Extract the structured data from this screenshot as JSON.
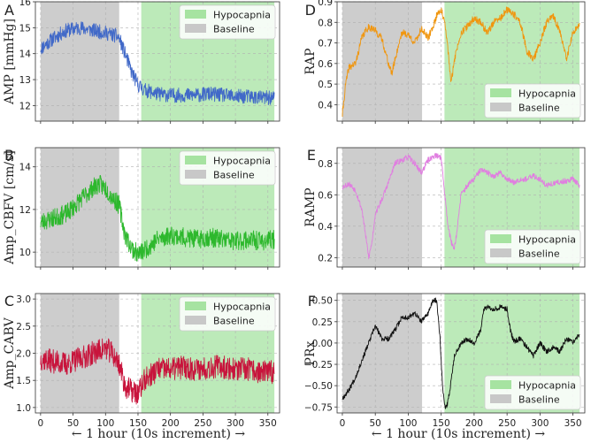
{
  "figure": {
    "bottom_xlabels": [
      "← 1 hour (10s increment) →",
      "← 1 hour (10s increment) →"
    ]
  },
  "colors": {
    "hypocapnia": "#a6e3a1",
    "baseline": "#c8c8c8"
  },
  "chart_data": [
    {
      "type": "line",
      "letter": "A",
      "ylabel": "AMP [mmHg]",
      "xlim": [
        -8,
        368
      ],
      "ylim": [
        11.4,
        16.0
      ],
      "xticks": [
        0,
        50,
        100,
        150,
        200,
        250,
        300,
        350
      ],
      "show_xticklabels": false,
      "yticks": [
        12,
        13,
        14,
        15,
        16
      ],
      "ytick_labels": [
        "12",
        "13",
        "14",
        "15",
        "16"
      ],
      "color": "#4169c8",
      "baseline_x": [
        0,
        121
      ],
      "hypocapnia_x": [
        155,
        360
      ],
      "legend": [
        "Hypocapnia",
        "Baseline"
      ],
      "legend_loc": "upper right",
      "noise": 0.28,
      "seed": 11,
      "x": [
        0,
        20,
        40,
        60,
        80,
        100,
        115,
        121,
        130,
        140,
        150,
        160,
        180,
        200,
        220,
        240,
        260,
        280,
        300,
        320,
        340,
        360
      ],
      "y": [
        14.2,
        14.6,
        14.9,
        15.0,
        14.9,
        14.8,
        14.7,
        14.6,
        14.0,
        13.3,
        12.8,
        12.6,
        12.45,
        12.4,
        12.4,
        12.4,
        12.45,
        12.4,
        12.35,
        12.35,
        12.3,
        12.3
      ]
    },
    {
      "type": "line",
      "letter": "B",
      "ylabel": "Amp_CBFV [cm/s]",
      "xlim": [
        -8,
        368
      ],
      "ylim": [
        9.3,
        14.9
      ],
      "xticks": [
        0,
        50,
        100,
        150,
        200,
        250,
        300,
        350
      ],
      "show_xticklabels": false,
      "yticks": [
        10,
        12,
        14
      ],
      "ytick_labels": [
        "10",
        "12",
        "14"
      ],
      "color": "#2db82d",
      "baseline_x": [
        0,
        121
      ],
      "hypocapnia_x": [
        155,
        360
      ],
      "legend": [
        "Hypocapnia",
        "Baseline"
      ],
      "legend_loc": "upper right",
      "noise": 0.45,
      "seed": 23,
      "x": [
        0,
        20,
        40,
        60,
        80,
        90,
        100,
        110,
        121,
        130,
        140,
        150,
        160,
        180,
        200,
        220,
        240,
        260,
        280,
        300,
        320,
        340,
        360
      ],
      "y": [
        11.4,
        11.6,
        11.8,
        12.4,
        13.0,
        13.2,
        13.0,
        12.6,
        12.2,
        10.8,
        10.2,
        9.9,
        10.1,
        10.6,
        10.8,
        10.7,
        10.6,
        10.7,
        10.6,
        10.5,
        10.6,
        10.5,
        10.6
      ]
    },
    {
      "type": "line",
      "letter": "C",
      "ylabel": "Amp_CABV",
      "xlim": [
        -8,
        368
      ],
      "ylim": [
        0.9,
        3.1
      ],
      "xticks": [
        0,
        50,
        100,
        150,
        200,
        250,
        300,
        350
      ],
      "show_xticklabels": true,
      "xtick_labels": [
        "0",
        "50",
        "100",
        "150",
        "200",
        "250",
        "300",
        "350"
      ],
      "yticks": [
        1.0,
        1.5,
        2.0,
        2.5,
        3.0
      ],
      "ytick_labels": [
        "1.0",
        "1.5",
        "2.0",
        "2.5",
        "3.0"
      ],
      "color": "#c8143c",
      "baseline_x": [
        0,
        121
      ],
      "hypocapnia_x": [
        155,
        360
      ],
      "legend": [
        "Hypocapnia",
        "Baseline"
      ],
      "legend_loc": "upper right",
      "noise": 0.22,
      "seed": 37,
      "x": [
        0,
        20,
        40,
        60,
        80,
        100,
        110,
        121,
        130,
        140,
        150,
        160,
        180,
        200,
        220,
        240,
        260,
        280,
        300,
        320,
        340,
        360
      ],
      "y": [
        1.9,
        1.85,
        1.8,
        1.9,
        2.0,
        2.1,
        2.0,
        1.8,
        1.4,
        1.3,
        1.25,
        1.5,
        1.7,
        1.7,
        1.75,
        1.7,
        1.75,
        1.75,
        1.7,
        1.7,
        1.65,
        1.65
      ]
    },
    {
      "type": "line",
      "letter": "D",
      "ylabel": "RAP",
      "xlim": [
        -8,
        368
      ],
      "ylim": [
        0.32,
        0.9
      ],
      "xticks": [
        0,
        50,
        100,
        150,
        200,
        250,
        300,
        350
      ],
      "show_xticklabels": false,
      "yticks": [
        0.4,
        0.5,
        0.6,
        0.7,
        0.8,
        0.9
      ],
      "ytick_labels": [
        "0.4",
        "0.5",
        "0.6",
        "0.7",
        "0.8",
        "0.9"
      ],
      "color": "#f0960f",
      "baseline_x": [
        0,
        121
      ],
      "hypocapnia_x": [
        155,
        360
      ],
      "legend": [
        "Hypocapnia",
        "Baseline"
      ],
      "legend_loc": "lower right",
      "noise": 0.018,
      "seed": 41,
      "x": [
        0,
        5,
        10,
        20,
        30,
        40,
        50,
        60,
        70,
        75,
        80,
        90,
        100,
        110,
        120,
        125,
        130,
        140,
        145,
        150,
        155,
        160,
        165,
        170,
        180,
        190,
        200,
        210,
        220,
        230,
        240,
        250,
        260,
        270,
        280,
        290,
        300,
        310,
        320,
        330,
        340,
        350,
        360
      ],
      "y": [
        0.35,
        0.5,
        0.58,
        0.6,
        0.73,
        0.78,
        0.76,
        0.72,
        0.6,
        0.55,
        0.62,
        0.75,
        0.74,
        0.7,
        0.77,
        0.75,
        0.72,
        0.8,
        0.85,
        0.86,
        0.8,
        0.68,
        0.5,
        0.62,
        0.75,
        0.78,
        0.82,
        0.8,
        0.75,
        0.8,
        0.82,
        0.86,
        0.84,
        0.8,
        0.66,
        0.62,
        0.7,
        0.8,
        0.83,
        0.76,
        0.62,
        0.75,
        0.78
      ]
    },
    {
      "type": "line",
      "letter": "E",
      "ylabel": "RAMP",
      "xlim": [
        -8,
        368
      ],
      "ylim": [
        0.14,
        0.9
      ],
      "xticks": [
        0,
        50,
        100,
        150,
        200,
        250,
        300,
        350
      ],
      "show_xticklabels": false,
      "yticks": [
        0.2,
        0.4,
        0.6,
        0.8
      ],
      "ytick_labels": [
        "0.2",
        "0.4",
        "0.6",
        "0.8"
      ],
      "color": "#e07ee0",
      "baseline_x": [
        0,
        121
      ],
      "hypocapnia_x": [
        155,
        360
      ],
      "legend": [
        "Hypocapnia",
        "Baseline"
      ],
      "legend_loc": "lower right",
      "noise": 0.018,
      "seed": 53,
      "x": [
        0,
        10,
        20,
        30,
        35,
        40,
        45,
        50,
        60,
        70,
        80,
        90,
        100,
        110,
        120,
        130,
        140,
        150,
        155,
        160,
        165,
        170,
        175,
        180,
        190,
        200,
        210,
        220,
        230,
        240,
        250,
        260,
        270,
        280,
        290,
        300,
        310,
        320,
        330,
        340,
        350,
        360
      ],
      "y": [
        0.65,
        0.67,
        0.63,
        0.5,
        0.35,
        0.2,
        0.3,
        0.48,
        0.57,
        0.68,
        0.8,
        0.82,
        0.84,
        0.8,
        0.74,
        0.82,
        0.85,
        0.84,
        0.62,
        0.42,
        0.3,
        0.26,
        0.4,
        0.6,
        0.66,
        0.7,
        0.76,
        0.74,
        0.72,
        0.74,
        0.7,
        0.68,
        0.7,
        0.7,
        0.72,
        0.7,
        0.66,
        0.67,
        0.68,
        0.69,
        0.7,
        0.66
      ]
    },
    {
      "type": "line",
      "letter": "F",
      "ylabel": "PRx",
      "xlim": [
        -8,
        368
      ],
      "ylim": [
        -0.82,
        0.58
      ],
      "xticks": [
        0,
        50,
        100,
        150,
        200,
        250,
        300,
        350
      ],
      "show_xticklabels": true,
      "xtick_labels": [
        "0",
        "50",
        "100",
        "150",
        "200",
        "250",
        "300",
        "350"
      ],
      "yticks": [
        -0.75,
        -0.5,
        -0.25,
        0.0,
        0.25,
        0.5
      ],
      "ytick_labels": [
        "−0.75",
        "−0.50",
        "−0.25",
        "0.00",
        "0.25",
        "0.50"
      ],
      "color": "#111111",
      "baseline_x": [
        0,
        121
      ],
      "hypocapnia_x": [
        155,
        360
      ],
      "legend": [
        "Hypocapnia",
        "Baseline"
      ],
      "legend_loc": "lower right",
      "noise": 0.03,
      "seed": 67,
      "x": [
        0,
        10,
        20,
        30,
        40,
        50,
        60,
        70,
        80,
        90,
        100,
        110,
        120,
        130,
        138,
        143,
        148,
        152,
        156,
        160,
        165,
        170,
        180,
        190,
        200,
        210,
        215,
        220,
        230,
        240,
        250,
        255,
        260,
        270,
        280,
        290,
        300,
        310,
        320,
        330,
        340,
        350,
        360
      ],
      "y": [
        -0.65,
        -0.55,
        -0.4,
        -0.2,
        0.0,
        0.2,
        0.05,
        0.05,
        0.15,
        0.3,
        0.3,
        0.35,
        0.25,
        0.35,
        0.5,
        0.5,
        0.1,
        -0.5,
        -0.78,
        -0.7,
        -0.45,
        -0.15,
        0.0,
        0.05,
        0.0,
        0.15,
        0.4,
        0.42,
        0.4,
        0.42,
        0.4,
        0.15,
        0.02,
        0.05,
        -0.05,
        -0.15,
        0.0,
        -0.1,
        -0.05,
        -0.1,
        0.05,
        0.0,
        0.1
      ]
    }
  ]
}
